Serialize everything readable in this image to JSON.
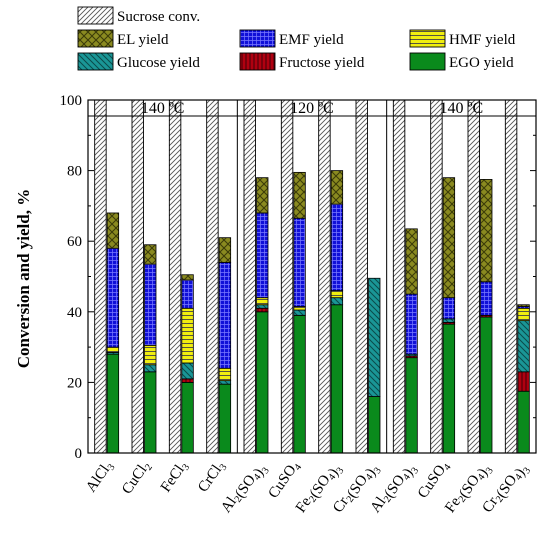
{
  "chart_data": {
    "type": "bar",
    "subtype": "stacked-with-side-bar",
    "ylabel": "Conversion and yield, %",
    "xlabel": "",
    "ylim": [
      0,
      100
    ],
    "yticks": [
      0,
      20,
      40,
      60,
      80,
      100
    ],
    "groups": [
      {
        "label": "140 ºC",
        "count": 4
      },
      {
        "label": "120 ºC",
        "count": 4
      },
      {
        "label": "140 ºC",
        "count": 4
      }
    ],
    "categories": [
      "AlCl3",
      "CuCl2",
      "FeCl3",
      "CrCl3",
      "Al2(SO4)3",
      "CuSO4",
      "Fe2(SO4)3",
      "Cr2(SO4)3",
      "Al2(SO4)3",
      "CuSO4",
      "Fe2(SO4)3",
      "Cr2(SO4)3"
    ],
    "category_labels": [
      [
        {
          "t": "AlCl"
        },
        {
          "t": "3",
          "sub": true
        }
      ],
      [
        {
          "t": "CuCl"
        },
        {
          "t": "2",
          "sub": true
        }
      ],
      [
        {
          "t": "FeCl"
        },
        {
          "t": "3",
          "sub": true
        }
      ],
      [
        {
          "t": "CrCl"
        },
        {
          "t": "3",
          "sub": true
        }
      ],
      [
        {
          "t": "Al"
        },
        {
          "t": "2",
          "sub": true
        },
        {
          "t": "(SO"
        },
        {
          "t": "4",
          "sub": true
        },
        {
          "t": ")"
        },
        {
          "t": "3",
          "sub": true
        }
      ],
      [
        {
          "t": "CuSO"
        },
        {
          "t": "4",
          "sub": true
        }
      ],
      [
        {
          "t": "Fe"
        },
        {
          "t": "2",
          "sub": true
        },
        {
          "t": "(SO"
        },
        {
          "t": "4",
          "sub": true
        },
        {
          "t": ")"
        },
        {
          "t": "3",
          "sub": true
        }
      ],
      [
        {
          "t": "Cr"
        },
        {
          "t": "2",
          "sub": true
        },
        {
          "t": "(SO"
        },
        {
          "t": "4",
          "sub": true
        },
        {
          "t": ")"
        },
        {
          "t": "3",
          "sub": true
        }
      ],
      [
        {
          "t": "Al"
        },
        {
          "t": "2",
          "sub": true
        },
        {
          "t": "(SO"
        },
        {
          "t": "4",
          "sub": true
        },
        {
          "t": ")"
        },
        {
          "t": "3",
          "sub": true
        }
      ],
      [
        {
          "t": "CuSO"
        },
        {
          "t": "4",
          "sub": true
        }
      ],
      [
        {
          "t": "Fe"
        },
        {
          "t": "2",
          "sub": true
        },
        {
          "t": "(SO"
        },
        {
          "t": "4",
          "sub": true
        },
        {
          "t": ")"
        },
        {
          "t": "3",
          "sub": true
        }
      ],
      [
        {
          "t": "Cr"
        },
        {
          "t": "2",
          "sub": true
        },
        {
          "t": "(SO"
        },
        {
          "t": "4",
          "sub": true
        },
        {
          "t": ")"
        },
        {
          "t": "3",
          "sub": true
        }
      ]
    ],
    "conversion_series": {
      "name": "Sucrose conv.",
      "values": [
        100,
        100,
        100,
        100,
        100,
        100,
        100,
        100,
        100,
        100,
        100,
        100
      ]
    },
    "stack_series": [
      {
        "name": "EGO yield",
        "key": "ego",
        "color": "#0a8a1c",
        "values": [
          28,
          23,
          20,
          19.5,
          40,
          39,
          42,
          16,
          27,
          36.5,
          38.5,
          17.5
        ]
      },
      {
        "name": "Fructose yield",
        "key": "fructose",
        "color": "#b00010",
        "values": [
          0,
          0,
          1,
          0,
          1,
          0,
          0,
          0,
          0.5,
          0.5,
          0.5,
          5.5
        ]
      },
      {
        "name": "Glucose yield",
        "key": "glucose",
        "color": "#1a9696",
        "values": [
          0.5,
          2,
          4.5,
          1,
          1,
          1.5,
          2,
          33.5,
          0.5,
          1,
          0,
          14.5
        ]
      },
      {
        "name": "HMF yield",
        "key": "hmf",
        "color": "#f0ee10",
        "values": [
          1.5,
          5.5,
          15.5,
          3.5,
          2,
          1,
          2,
          0,
          0,
          0,
          0,
          3.5
        ]
      },
      {
        "name": "EMF yield",
        "key": "emf",
        "color": "#1010d8",
        "values": [
          28,
          23,
          8,
          30,
          24,
          25,
          24.5,
          0,
          17,
          6,
          9.5,
          0.5
        ]
      },
      {
        "name": "EL yield",
        "key": "el",
        "color": "#8a8a20",
        "values": [
          10,
          5.5,
          1.5,
          7,
          10,
          13,
          9.5,
          0,
          18.5,
          34,
          29,
          0.5
        ]
      }
    ],
    "legend": {
      "placement": "top",
      "rows": [
        [
          "Sucrose conv."
        ],
        [
          "EL yield",
          "EMF yield",
          "HMF yield"
        ],
        [
          "Glucose yield",
          "Fructose yield",
          "EGO yield"
        ]
      ]
    },
    "grid": false
  }
}
